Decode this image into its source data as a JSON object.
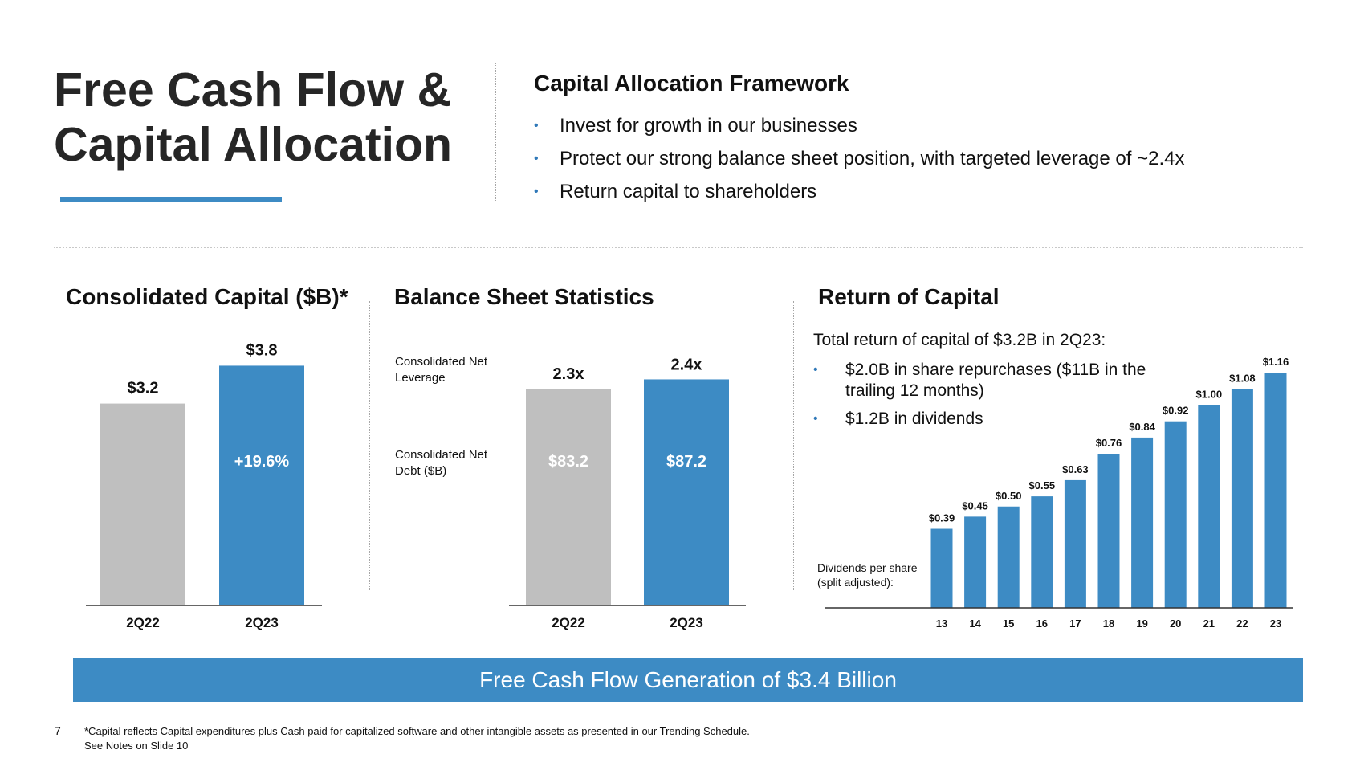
{
  "title": {
    "line1": "Free Cash Flow &",
    "line2": "Capital Allocation"
  },
  "colors": {
    "accent_blue": "#3d8bc4",
    "gray_bar": "#bfbfbf",
    "text_dark": "#262626"
  },
  "framework": {
    "title": "Capital Allocation Framework",
    "bullets": [
      "Invest for growth in our businesses",
      "Protect our strong balance sheet position, with targeted leverage of ~2.4x",
      "Return capital to shareholders"
    ]
  },
  "capital_section": {
    "title": "Consolidated Capital ($B)*"
  },
  "balance_section": {
    "title": "Balance Sheet Statistics",
    "row_label_1": "Consolidated Net Leverage",
    "row_label_2": "Consolidated Net Debt ($B)"
  },
  "return_section": {
    "title": "Return of Capital",
    "intro": "Total return of capital of $3.2B in 2Q23:",
    "bullets": [
      "$2.0B in share repurchases ($11B in the trailing 12 months)",
      "$1.2B in dividends"
    ],
    "dps_label": "Dividends per share (split adjusted):"
  },
  "chart_data": [
    {
      "id": "consolidated-capital",
      "type": "bar",
      "categories": [
        "2Q22",
        "2Q23"
      ],
      "values": [
        3.2,
        3.8
      ],
      "data_labels": [
        "$3.2",
        "$3.8"
      ],
      "inner_labels": [
        "",
        "+19.6%"
      ],
      "colors": [
        "#bfbfbf",
        "#3d8bc4"
      ],
      "ylim": [
        0,
        4.2
      ]
    },
    {
      "id": "balance-sheet",
      "type": "bar",
      "categories": [
        "2Q22",
        "2Q23"
      ],
      "leverage": [
        2.3,
        2.4
      ],
      "leverage_labels": [
        "2.3x",
        "2.4x"
      ],
      "net_debt": [
        83.2,
        87.2
      ],
      "net_debt_labels": [
        "$83.2",
        "$87.2"
      ],
      "colors": [
        "#bfbfbf",
        "#3d8bc4"
      ],
      "ylim": [
        0,
        2.6
      ]
    },
    {
      "id": "dividends-per-share",
      "type": "bar",
      "categories": [
        "13",
        "14",
        "15",
        "16",
        "17",
        "18",
        "19",
        "20",
        "21",
        "22",
        "23"
      ],
      "values": [
        0.39,
        0.45,
        0.5,
        0.55,
        0.63,
        0.76,
        0.84,
        0.92,
        1.0,
        1.08,
        1.16
      ],
      "data_labels": [
        "$0.39",
        "$0.45",
        "$0.50",
        "$0.55",
        "$0.63",
        "$0.76",
        "$0.84",
        "$0.92",
        "$1.00",
        "$1.08",
        "$1.16"
      ],
      "color": "#3d8bc4",
      "ylim": [
        0,
        1.2
      ]
    }
  ],
  "banner": {
    "text": "Free Cash Flow Generation of $3.4 Billion"
  },
  "footer": {
    "page_number": "7",
    "footnote_line1": "*Capital reflects Capital expenditures plus Cash paid for capitalized software and other intangible assets as presented in our Trending Schedule.",
    "footnote_line2": "See Notes on Slide 10"
  }
}
